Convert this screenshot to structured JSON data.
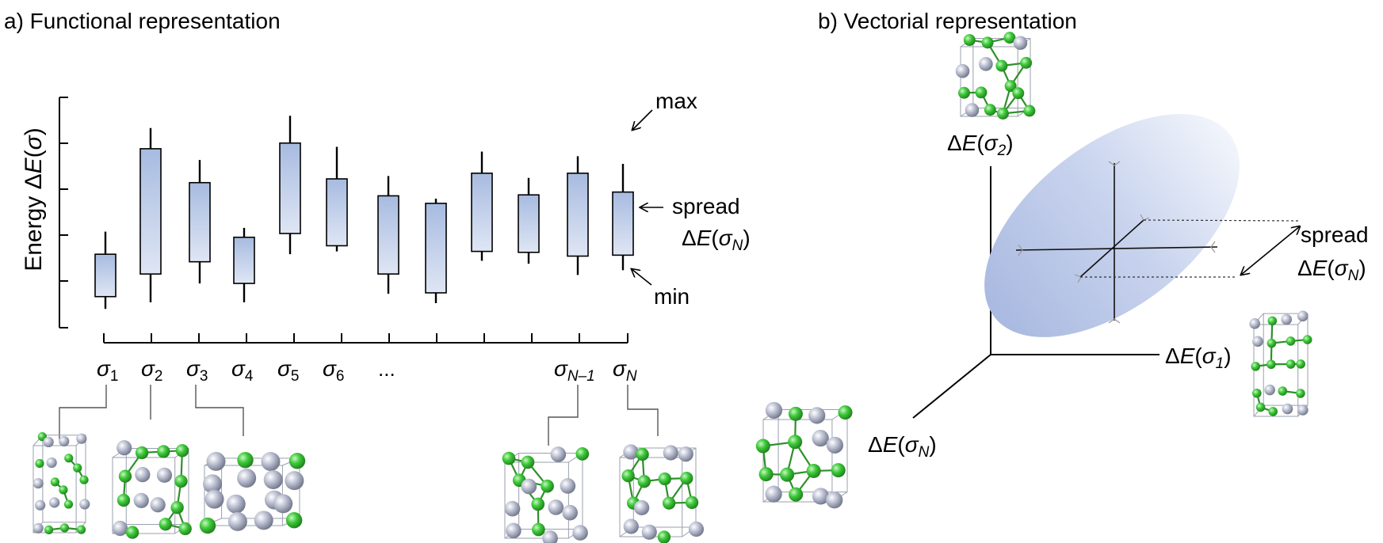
{
  "panel_a": {
    "title": "a) Functional representation",
    "ylabel_prefix": "Energy ",
    "ylabel_delta": "Δ",
    "ylabel_sym": "E",
    "ylabel_sigma": "σ",
    "annotations": {
      "max": "max",
      "min": "min",
      "spread": "spread",
      "spread_expr": {
        "delta": "Δ",
        "sym": "E",
        "sigma": "σ",
        "sub": "N"
      }
    },
    "ellipsis": "...",
    "sigma_labels": [
      {
        "sigma": "σ",
        "sub": "1"
      },
      {
        "sigma": "σ",
        "sub": "2"
      },
      {
        "sigma": "σ",
        "sub": "3"
      },
      {
        "sigma": "σ",
        "sub": "4"
      },
      {
        "sigma": "σ",
        "sub": "5"
      },
      {
        "sigma": "σ",
        "sub": "6"
      },
      {
        "sigma": "σ",
        "sub": "N–1"
      },
      {
        "sigma": "σ",
        "sub": "N"
      }
    ],
    "bars": [
      {
        "min": 20,
        "box_low": 33,
        "box_high": 78,
        "max": 102
      },
      {
        "min": 27,
        "box_low": 57,
        "box_high": 190,
        "max": 212
      },
      {
        "min": 47,
        "box_low": 70,
        "box_high": 154,
        "max": 178
      },
      {
        "min": 27,
        "box_low": 47,
        "box_high": 96,
        "max": 106
      },
      {
        "min": 78,
        "box_low": 100,
        "box_high": 196,
        "max": 225
      },
      {
        "min": 81,
        "box_low": 87,
        "box_high": 158,
        "max": 192
      },
      {
        "min": 36,
        "box_low": 57,
        "box_high": 140,
        "max": 161
      },
      {
        "min": 26,
        "box_low": 37,
        "box_high": 132,
        "max": 137
      },
      {
        "min": 71,
        "box_low": 81,
        "box_high": 164,
        "max": 187
      },
      {
        "min": 68,
        "box_low": 80,
        "box_high": 141,
        "max": 159
      },
      {
        "min": 56,
        "box_low": 76,
        "box_high": 164,
        "max": 182
      },
      {
        "min": 61,
        "box_low": 77,
        "box_high": 144,
        "max": 174
      }
    ]
  },
  "panel_b": {
    "title": "b) Vectorial representation",
    "axis_sigma2": {
      "delta": "Δ",
      "sym": "E",
      "sigma": "σ",
      "sub": "2"
    },
    "axis_sigma1": {
      "delta": "Δ",
      "sym": "E",
      "sigma": "σ",
      "sub": "1"
    },
    "axis_sigmaN": {
      "delta": "Δ",
      "sym": "E",
      "sigma": "σ",
      "sub": "N"
    },
    "spread": "spread",
    "spread_expr": {
      "delta": "Δ",
      "sym": "E",
      "sigma": "σ",
      "sub": "N"
    }
  },
  "colors": {
    "box_top": "#a7bbe0",
    "box_bottom": "#dfe6f4",
    "atom_green": "#3ec93a",
    "atom_silver": "#b4b9cc",
    "bond": "#2f8f2c"
  },
  "icons": [
    "crystal-structure-icon"
  ]
}
